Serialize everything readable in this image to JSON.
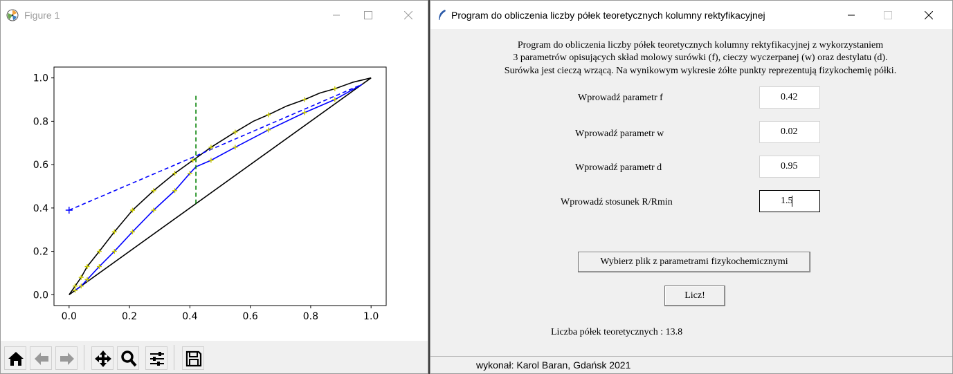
{
  "figure_window": {
    "title": "Figure 1",
    "toolbar": [
      {
        "icon": "home-icon"
      },
      {
        "icon": "back-arrow-icon"
      },
      {
        "icon": "forward-arrow-icon"
      },
      {
        "icon": "pan-icon"
      },
      {
        "icon": "zoom-icon"
      },
      {
        "icon": "configure-subplots-icon"
      },
      {
        "icon": "save-icon"
      }
    ]
  },
  "chart_data": {
    "type": "line",
    "title": "",
    "xlabel": "",
    "ylabel": "",
    "xlim": [
      -0.05,
      1.05
    ],
    "ylim": [
      -0.05,
      1.05
    ],
    "x_ticks": [
      "0.0",
      "0.2",
      "0.4",
      "0.6",
      "0.8",
      "1.0"
    ],
    "y_ticks": [
      "0.0",
      "0.2",
      "0.4",
      "0.6",
      "0.8",
      "1.0"
    ],
    "grid": false,
    "series": [
      {
        "color": "#000000",
        "style": "solid",
        "x": [
          0,
          1
        ],
        "y": [
          0,
          1
        ]
      },
      {
        "color": "#000000",
        "style": "solid",
        "x": [
          0,
          0.02,
          0.04,
          0.06,
          0.1,
          0.15,
          0.21,
          0.28,
          0.35,
          0.42,
          0.47,
          0.55,
          0.61,
          0.66,
          0.72,
          0.78,
          0.83,
          0.88,
          0.94,
          1
        ],
        "y": [
          0,
          0.04,
          0.08,
          0.13,
          0.2,
          0.29,
          0.39,
          0.48,
          0.56,
          0.63,
          0.68,
          0.75,
          0.8,
          0.83,
          0.87,
          0.9,
          0.93,
          0.95,
          0.98,
          1
        ]
      },
      {
        "color": "#0000ff",
        "style": "solid",
        "x": [
          0.02,
          0.04,
          0.06,
          0.1,
          0.15,
          0.21,
          0.28,
          0.35,
          0.4,
          0.42,
          0.47,
          0.55,
          0.66,
          0.78,
          0.88,
          0.97
        ],
        "y": [
          0.02,
          0.04,
          0.07,
          0.13,
          0.2,
          0.29,
          0.39,
          0.48,
          0.56,
          0.59,
          0.62,
          0.68,
          0.76,
          0.84,
          0.9,
          0.97
        ]
      },
      {
        "color": "#0000ff",
        "style": "dashed",
        "x": [
          0,
          0.42,
          0.97
        ],
        "y": [
          0.39,
          0.64,
          0.97
        ]
      },
      {
        "color": "#008000",
        "style": "dashed",
        "x": [
          0.42,
          0.42
        ],
        "y": [
          0.42,
          0.92
        ]
      }
    ],
    "markers": {
      "blue_plus": {
        "x": [
          0
        ],
        "y": [
          0.39
        ]
      },
      "yellow_points": {
        "x": [
          0.02,
          0.02,
          0.04,
          0.04,
          0.06,
          0.06,
          0.1,
          0.1,
          0.15,
          0.15,
          0.21,
          0.21,
          0.28,
          0.28,
          0.35,
          0.35,
          0.4,
          0.41,
          0.47,
          0.47,
          0.55,
          0.55,
          0.66,
          0.66,
          0.78,
          0.78,
          0.88,
          0.88
        ],
        "y": [
          0.02,
          0.04,
          0.04,
          0.08,
          0.07,
          0.13,
          0.13,
          0.2,
          0.2,
          0.29,
          0.29,
          0.39,
          0.39,
          0.48,
          0.48,
          0.56,
          0.56,
          0.62,
          0.62,
          0.68,
          0.68,
          0.75,
          0.76,
          0.83,
          0.84,
          0.9,
          0.9,
          0.95
        ]
      }
    }
  },
  "app_window": {
    "title": "Program do obliczenia liczby półek teoretycznych kolumny rektyfikacyjnej",
    "description": [
      "Program do obliczenia liczby półek teoretycznych kolumny rektyfikacyjnej z wykorzystaniem",
      "3 parametrów opisujących skład molowy surówki (f), cieczy wyczerpanej (w) oraz destylatu (d).",
      "Surówka jest cieczą wrzącą. Na wynikowym wykresie żółte punkty reprezentują fizykochemię półki."
    ],
    "params": [
      {
        "label": "Wprowadź parametr f",
        "value": "0.42"
      },
      {
        "label": "Wprowadź parametr w",
        "value": "0.02"
      },
      {
        "label": "Wprowadź parametr d",
        "value": "0.95"
      },
      {
        "label": "Wprowadź stosunek R/Rmin",
        "value": "1.5"
      }
    ],
    "choose_file_button": "Wybierz plik z parametrami fizykochemicznymi",
    "compute_button": "Licz!",
    "result": "Liczba półek teoretycznych : 13.8",
    "status": "wykonał: Karol Baran, Gdańsk 2021"
  }
}
